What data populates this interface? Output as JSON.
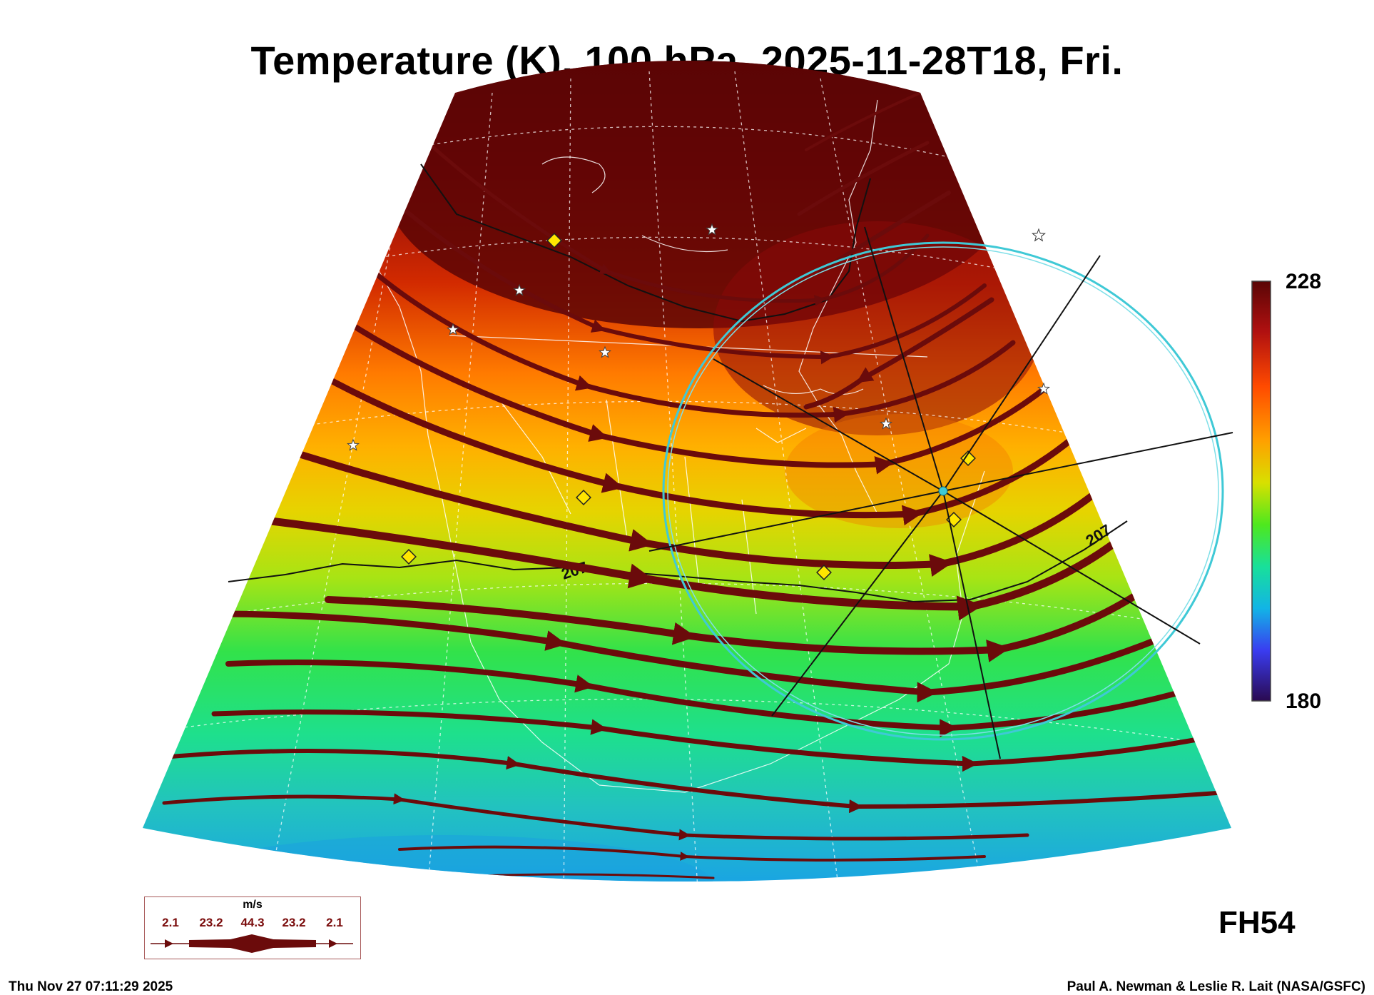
{
  "title": "Temperature (K), 100 hPa, 2025-11-28T18, Fri.",
  "colorbar": {
    "max": "228",
    "min": "180"
  },
  "forecast_hour": "FH54",
  "timestamp": "Thu Nov 27 07:11:29 2025",
  "credit": "Paul A. Newman & Leslie R. Lait (NASA/GSFC)",
  "contour_labels": [
    "207",
    "207"
  ],
  "wind_legend": {
    "unit": "m/s",
    "values": [
      "2.1",
      "23.2",
      "44.3",
      "23.2",
      "2.1"
    ]
  },
  "colors": {
    "streamline": "#6b0b0b",
    "wind_circle": "#3fc9d6",
    "marker_diamond": "#ffe600",
    "marker_star": "#ffffff"
  }
}
